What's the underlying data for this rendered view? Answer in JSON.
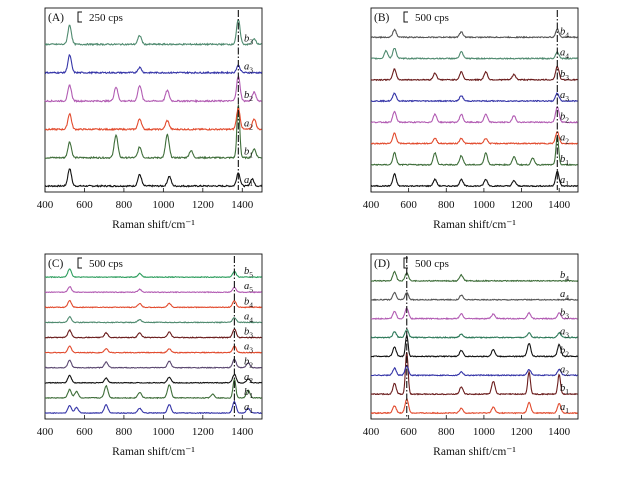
{
  "chart_data": [
    {
      "type": "line",
      "panel_label": "(A)",
      "scale_label": "250 cps",
      "xlabel": "Raman shift/cm⁻¹",
      "ylabel": "",
      "xlim": [
        400,
        1500
      ],
      "xticks": [
        400,
        600,
        800,
        1000,
        1200,
        1400
      ],
      "marker_x": 1380,
      "series": [
        {
          "name": "a",
          "sub": "1",
          "color": "#111111",
          "peaks": [
            [
              525,
              1.0
            ],
            [
              880,
              0.65
            ],
            [
              1030,
              0.55
            ],
            [
              1380,
              0.75
            ],
            [
              1450,
              0.4
            ]
          ]
        },
        {
          "name": "b",
          "sub": "1",
          "color": "#3f6e3a",
          "peaks": [
            [
              525,
              0.9
            ],
            [
              760,
              1.3
            ],
            [
              880,
              0.6
            ],
            [
              1020,
              1.3
            ],
            [
              1140,
              0.4
            ],
            [
              1380,
              3.0
            ],
            [
              1460,
              0.5
            ]
          ]
        },
        {
          "name": "a",
          "sub": "2",
          "color": "#e24b2e",
          "peaks": [
            [
              525,
              0.9
            ],
            [
              880,
              0.6
            ],
            [
              1020,
              0.5
            ],
            [
              1380,
              1.2
            ],
            [
              1460,
              0.6
            ]
          ]
        },
        {
          "name": "b",
          "sub": "2",
          "color": "#b25cb3",
          "peaks": [
            [
              525,
              0.9
            ],
            [
              760,
              0.8
            ],
            [
              880,
              0.9
            ],
            [
              1020,
              0.6
            ],
            [
              1380,
              1.4
            ],
            [
              1460,
              0.5
            ]
          ]
        },
        {
          "name": "a",
          "sub": "3",
          "color": "#3535a8",
          "peaks": [
            [
              525,
              1.0
            ],
            [
              880,
              0.3
            ],
            [
              1380,
              0.4
            ]
          ]
        },
        {
          "name": "b",
          "sub": "3",
          "color": "#4f8a6f",
          "peaks": [
            [
              525,
              1.1
            ],
            [
              880,
              0.5
            ],
            [
              1380,
              1.4
            ],
            [
              1460,
              0.3
            ]
          ]
        }
      ]
    },
    {
      "type": "line",
      "panel_label": "(B)",
      "scale_label": "500 cps",
      "xlabel": "Raman shift/cm⁻¹",
      "ylabel": "",
      "xlim": [
        400,
        1500
      ],
      "xticks": [
        400,
        600,
        800,
        1000,
        1200,
        1400
      ],
      "marker_x": 1390,
      "series": [
        {
          "name": "a",
          "sub": "1",
          "color": "#111111",
          "peaks": [
            [
              525,
              0.9
            ],
            [
              740,
              0.5
            ],
            [
              880,
              0.5
            ],
            [
              1010,
              0.5
            ],
            [
              1160,
              0.4
            ],
            [
              1390,
              1.1
            ]
          ]
        },
        {
          "name": "b",
          "sub": "1",
          "color": "#3f6e3a",
          "peaks": [
            [
              525,
              0.9
            ],
            [
              740,
              0.9
            ],
            [
              880,
              0.7
            ],
            [
              1010,
              0.9
            ],
            [
              1160,
              0.6
            ],
            [
              1260,
              0.5
            ],
            [
              1390,
              2.2
            ]
          ]
        },
        {
          "name": "a",
          "sub": "2",
          "color": "#e24b2e",
          "peaks": [
            [
              525,
              0.8
            ],
            [
              740,
              0.4
            ],
            [
              880,
              0.4
            ],
            [
              1010,
              0.4
            ],
            [
              1390,
              0.9
            ]
          ]
        },
        {
          "name": "b",
          "sub": "2",
          "color": "#b25cb3",
          "peaks": [
            [
              525,
              0.8
            ],
            [
              740,
              0.6
            ],
            [
              880,
              0.6
            ],
            [
              1010,
              0.6
            ],
            [
              1160,
              0.5
            ],
            [
              1390,
              1.2
            ]
          ]
        },
        {
          "name": "a",
          "sub": "3",
          "color": "#3535a8",
          "peaks": [
            [
              525,
              0.6
            ],
            [
              880,
              0.4
            ],
            [
              1390,
              0.6
            ]
          ]
        },
        {
          "name": "b",
          "sub": "3",
          "color": "#6b1d1d",
          "peaks": [
            [
              525,
              0.8
            ],
            [
              740,
              0.5
            ],
            [
              880,
              0.6
            ],
            [
              1010,
              0.6
            ],
            [
              1160,
              0.4
            ],
            [
              1390,
              1.0
            ]
          ]
        },
        {
          "name": "a",
          "sub": "4",
          "color": "#4f8a6f",
          "peaks": [
            [
              480,
              0.6
            ],
            [
              525,
              0.8
            ],
            [
              880,
              0.5
            ],
            [
              1390,
              0.5
            ]
          ]
        },
        {
          "name": "b",
          "sub": "4",
          "color": "#555555",
          "peaks": [
            [
              525,
              0.6
            ],
            [
              880,
              0.4
            ],
            [
              1390,
              0.6
            ]
          ]
        }
      ]
    },
    {
      "type": "line",
      "panel_label": "(C)",
      "scale_label": "500 cps",
      "xlabel": "Raman shift/cm⁻¹",
      "ylabel": "",
      "xlim": [
        400,
        1500
      ],
      "xticks": [
        400,
        600,
        800,
        1000,
        1200,
        1400
      ],
      "marker_x": 1360,
      "series": [
        {
          "name": "a",
          "sub": "1",
          "color": "#3535a8",
          "peaks": [
            [
              525,
              0.8
            ],
            [
              560,
              0.6
            ],
            [
              710,
              0.9
            ],
            [
              880,
              0.5
            ],
            [
              1030,
              0.9
            ],
            [
              1360,
              1.2
            ],
            [
              1430,
              0.5
            ]
          ]
        },
        {
          "name": "b",
          "sub": "1",
          "color": "#3f6e3a",
          "peaks": [
            [
              525,
              0.9
            ],
            [
              560,
              0.7
            ],
            [
              710,
              1.3
            ],
            [
              880,
              0.6
            ],
            [
              1030,
              1.4
            ],
            [
              1250,
              0.4
            ],
            [
              1360,
              2.0
            ],
            [
              1430,
              0.8
            ]
          ]
        },
        {
          "name": "a",
          "sub": "2",
          "color": "#111111",
          "peaks": [
            [
              525,
              0.8
            ],
            [
              710,
              0.5
            ],
            [
              1030,
              0.6
            ],
            [
              1360,
              0.9
            ],
            [
              1430,
              0.4
            ]
          ]
        },
        {
          "name": "b",
          "sub": "2",
          "color": "#5a4770",
          "peaks": [
            [
              525,
              0.8
            ],
            [
              710,
              0.6
            ],
            [
              1030,
              0.7
            ],
            [
              1360,
              0.9
            ],
            [
              1430,
              0.5
            ]
          ]
        },
        {
          "name": "a",
          "sub": "3",
          "color": "#e24b2e",
          "peaks": [
            [
              525,
              0.7
            ],
            [
              710,
              0.4
            ],
            [
              1030,
              0.4
            ],
            [
              1360,
              0.7
            ]
          ]
        },
        {
          "name": "b",
          "sub": "3",
          "color": "#6b1d1d",
          "peaks": [
            [
              525,
              0.8
            ],
            [
              710,
              0.5
            ],
            [
              880,
              0.5
            ],
            [
              1030,
              0.6
            ],
            [
              1360,
              0.9
            ]
          ]
        },
        {
          "name": "a",
          "sub": "4",
          "color": "#4f8a6f",
          "peaks": [
            [
              525,
              0.6
            ],
            [
              880,
              0.3
            ],
            [
              1360,
              0.5
            ]
          ]
        },
        {
          "name": "b",
          "sub": "4",
          "color": "#e24b2e",
          "peaks": [
            [
              525,
              0.7
            ],
            [
              880,
              0.4
            ],
            [
              1030,
              0.4
            ],
            [
              1360,
              0.7
            ]
          ]
        },
        {
          "name": "a",
          "sub": "5",
          "color": "#b25cb3",
          "peaks": [
            [
              525,
              0.6
            ],
            [
              880,
              0.3
            ],
            [
              1360,
              0.5
            ]
          ]
        },
        {
          "name": "b",
          "sub": "5",
          "color": "#2e9e5e",
          "peaks": [
            [
              525,
              0.9
            ],
            [
              880,
              0.4
            ],
            [
              1360,
              0.6
            ]
          ]
        }
      ]
    },
    {
      "type": "line",
      "panel_label": "(D)",
      "scale_label": "500 cps",
      "xlabel": "Raman shift/cm⁻¹",
      "ylabel": "",
      "xlim": [
        400,
        1500
      ],
      "xticks": [
        400,
        600,
        800,
        1000,
        1200,
        1400
      ],
      "marker_x": 590,
      "series": [
        {
          "name": "a",
          "sub": "1",
          "color": "#e24b2e",
          "peaks": [
            [
              525,
              0.6
            ],
            [
              590,
              1.2
            ],
            [
              880,
              0.4
            ],
            [
              1050,
              0.5
            ],
            [
              1240,
              0.9
            ],
            [
              1400,
              0.8
            ]
          ]
        },
        {
          "name": "b",
          "sub": "1",
          "color": "#6b1d1d",
          "peaks": [
            [
              525,
              0.9
            ],
            [
              590,
              3.6
            ],
            [
              880,
              0.6
            ],
            [
              1050,
              1.1
            ],
            [
              1240,
              1.9
            ],
            [
              1400,
              1.7
            ]
          ]
        },
        {
          "name": "a",
          "sub": "2",
          "color": "#3535a8",
          "peaks": [
            [
              525,
              0.6
            ],
            [
              590,
              0.8
            ],
            [
              880,
              0.3
            ],
            [
              1240,
              0.5
            ],
            [
              1400,
              0.5
            ]
          ]
        },
        {
          "name": "b",
          "sub": "2",
          "color": "#111111",
          "peaks": [
            [
              525,
              0.8
            ],
            [
              590,
              1.8
            ],
            [
              880,
              0.5
            ],
            [
              1050,
              0.6
            ],
            [
              1240,
              1.1
            ],
            [
              1400,
              1.0
            ]
          ]
        },
        {
          "name": "a",
          "sub": "3",
          "color": "#2e7a5a",
          "peaks": [
            [
              525,
              0.5
            ],
            [
              590,
              0.7
            ],
            [
              880,
              0.3
            ],
            [
              1240,
              0.4
            ],
            [
              1400,
              0.4
            ]
          ]
        },
        {
          "name": "b",
          "sub": "3",
          "color": "#b25cb3",
          "peaks": [
            [
              525,
              0.6
            ],
            [
              590,
              0.9
            ],
            [
              880,
              0.4
            ],
            [
              1050,
              0.4
            ],
            [
              1240,
              0.5
            ],
            [
              1400,
              0.5
            ]
          ]
        },
        {
          "name": "a",
          "sub": "4",
          "color": "#555555",
          "peaks": [
            [
              525,
              0.6
            ],
            [
              590,
              0.6
            ],
            [
              880,
              0.4
            ]
          ]
        },
        {
          "name": "b",
          "sub": "4",
          "color": "#3f6e3a",
          "peaks": [
            [
              525,
              0.8
            ],
            [
              590,
              0.7
            ],
            [
              880,
              0.5
            ]
          ]
        }
      ]
    }
  ]
}
